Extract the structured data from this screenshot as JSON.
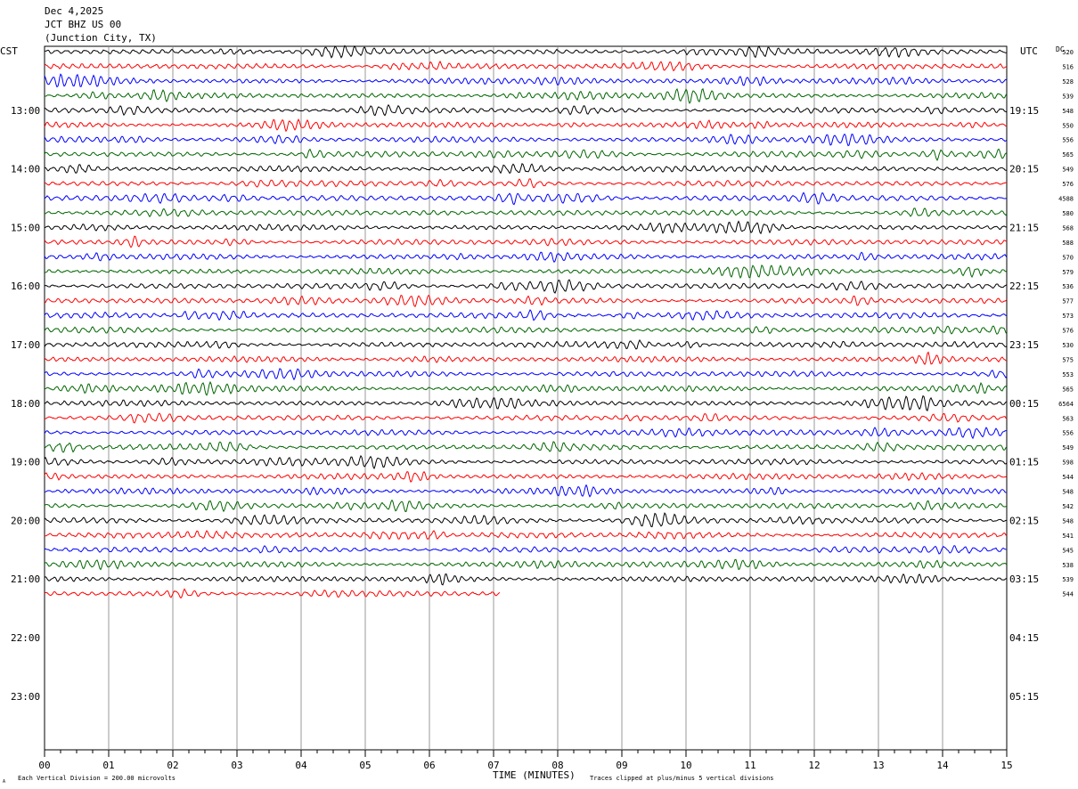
{
  "header": {
    "date": "Dec 4,2025",
    "station": "JCT BHZ US 00",
    "location": "(Junction City, TX)"
  },
  "left_axis_label": "CST",
  "right_axis_label": "UTC",
  "dc_label": "DC",
  "footer": {
    "scale_note": "Each Vertical Division =  200.00 microvolts",
    "clip_note": "Traces clipped at plus/minus 5 vertical divisions",
    "corner_mark": "A"
  },
  "chart_data": {
    "type": "line",
    "title": "",
    "xlabel": "TIME (MINUTES)",
    "x_ticks": [
      "00",
      "01",
      "02",
      "03",
      "04",
      "05",
      "06",
      "07",
      "08",
      "09",
      "10",
      "11",
      "12",
      "13",
      "14",
      "15"
    ],
    "xlim": [
      0,
      15
    ],
    "grid": true,
    "rows_per_hour": 4,
    "row_colors": [
      "#000000",
      "#ff0000",
      "#0000ff",
      "#006600"
    ],
    "left_hour_labels": [
      {
        "row": 4,
        "label": "13:00"
      },
      {
        "row": 8,
        "label": "14:00"
      },
      {
        "row": 12,
        "label": "15:00"
      },
      {
        "row": 16,
        "label": "16:00"
      },
      {
        "row": 20,
        "label": "17:00"
      },
      {
        "row": 24,
        "label": "18:00"
      },
      {
        "row": 28,
        "label": "19:00"
      },
      {
        "row": 32,
        "label": "20:00"
      },
      {
        "row": 36,
        "label": "21:00"
      },
      {
        "row": 40,
        "label": "22:00"
      },
      {
        "row": 44,
        "label": "23:00"
      }
    ],
    "right_hour_labels": [
      {
        "row": 4,
        "label": "19:15"
      },
      {
        "row": 8,
        "label": "20:15"
      },
      {
        "row": 12,
        "label": "21:15"
      },
      {
        "row": 16,
        "label": "22:15"
      },
      {
        "row": 20,
        "label": "23:15"
      },
      {
        "row": 24,
        "label": "00:15"
      },
      {
        "row": 28,
        "label": "01:15"
      },
      {
        "row": 32,
        "label": "02:15"
      },
      {
        "row": 36,
        "label": "03:15"
      },
      {
        "row": 40,
        "label": "04:15"
      },
      {
        "row": 44,
        "label": "05:15"
      }
    ],
    "total_rows": 48,
    "trace_rows": 38,
    "last_trace_end_minute": 7.1,
    "dc_offsets": [
      "520",
      "516",
      "528",
      "539",
      "548",
      "550",
      "556",
      "565",
      "549",
      "576",
      "4588",
      "580",
      "568",
      "588",
      "570",
      "579",
      "536",
      "577",
      "573",
      "576",
      "530",
      "575",
      "553",
      "565",
      "6564",
      "563",
      "556",
      "549",
      "598",
      "544",
      "548",
      "542",
      "548",
      "541",
      "545",
      "538",
      "539",
      "544"
    ]
  }
}
